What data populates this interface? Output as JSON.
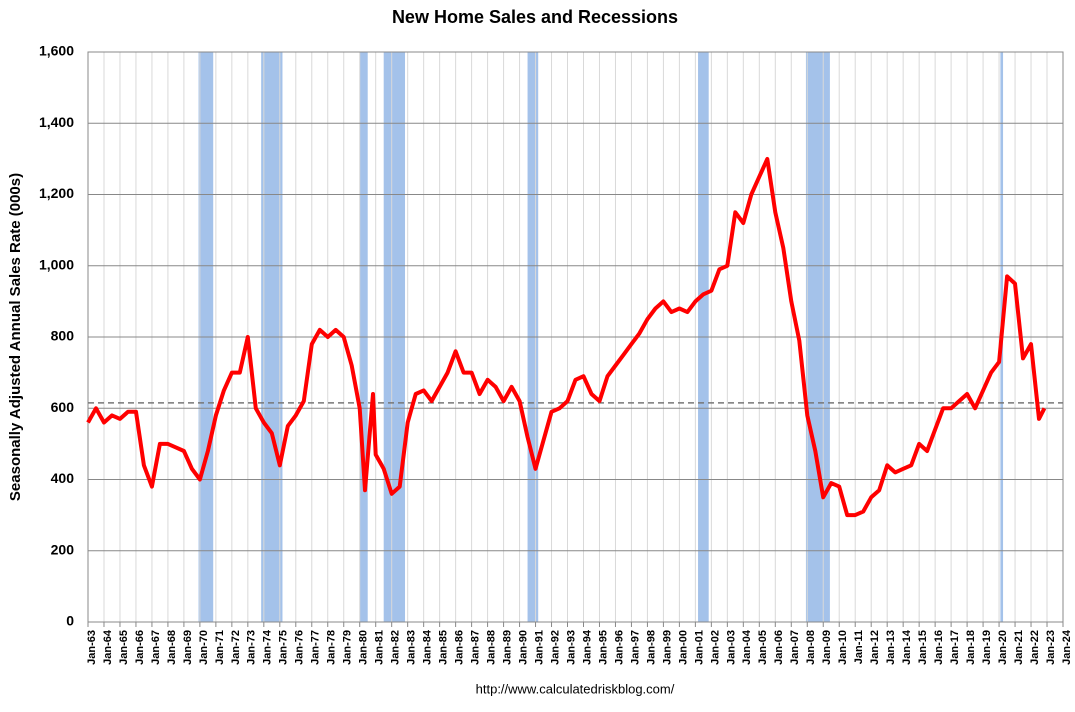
{
  "chart_data": {
    "type": "line",
    "title": "New Home Sales and Recessions",
    "y_label": "Seasonally Adjusted Annual Sales Rate (000s)",
    "source": "http://www.calculatedriskblog.com/",
    "ylim": [
      0,
      1600
    ],
    "yticks": [
      0,
      200,
      400,
      600,
      800,
      {
        "value": 1000,
        "label": "1,000"
      },
      {
        "value": 1200,
        "label": "1,200"
      },
      {
        "value": 1400,
        "label": "1,400"
      },
      {
        "value": 1600,
        "label": "1,600"
      }
    ],
    "xlim": [
      "Jan-63",
      "Jan-24"
    ],
    "xticks": [
      "Jan-63",
      "Jan-64",
      "Jan-65",
      "Jan-66",
      "Jan-67",
      "Jan-68",
      "Jan-69",
      "Jan-70",
      "Jan-71",
      "Jan-72",
      "Jan-73",
      "Jan-74",
      "Jan-75",
      "Jan-76",
      "Jan-77",
      "Jan-78",
      "Jan-79",
      "Jan-80",
      "Jan-81",
      "Jan-82",
      "Jan-83",
      "Jan-84",
      "Jan-85",
      "Jan-86",
      "Jan-87",
      "Jan-88",
      "Jan-89",
      "Jan-90",
      "Jan-91",
      "Jan-92",
      "Jan-93",
      "Jan-94",
      "Jan-95",
      "Jan-96",
      "Jan-97",
      "Jan-98",
      "Jan-99",
      "Jan-00",
      "Jan-01",
      "Jan-02",
      "Jan-03",
      "Jan-04",
      "Jan-05",
      "Jan-06",
      "Jan-07",
      "Jan-08",
      "Jan-09",
      "Jan-10",
      "Jan-11",
      "Jan-12",
      "Jan-13",
      "Jan-14",
      "Jan-15",
      "Jan-16",
      "Jan-17",
      "Jan-18",
      "Jan-19",
      "Jan-20",
      "Jan-21",
      "Jan-22",
      "Jan-23",
      "Jan-24"
    ],
    "grid": true,
    "reference_line": 615,
    "recession_color": "#a4c2ea",
    "recessions": [
      [
        "Dec-69",
        "Nov-70"
      ],
      [
        "Nov-73",
        "Mar-75"
      ],
      [
        "Jan-80",
        "Jul-80"
      ],
      [
        "Jul-81",
        "Nov-82"
      ],
      [
        "Jul-90",
        "Mar-91"
      ],
      [
        "Mar-01",
        "Nov-01"
      ],
      [
        "Dec-07",
        "Jun-09"
      ],
      [
        "Feb-20",
        "Apr-20"
      ]
    ],
    "series": [
      {
        "name": "New Home Sales",
        "color": "#ff0000",
        "x": [
          "Jan-63",
          "Jul-63",
          "Jan-64",
          "Jul-64",
          "Jan-65",
          "Jul-65",
          "Jan-66",
          "Jul-66",
          "Jan-67",
          "Jul-67",
          "Jan-68",
          "Jul-68",
          "Jan-69",
          "Jul-69",
          "Jan-70",
          "Jul-70",
          "Jan-71",
          "Jul-71",
          "Jan-72",
          "Jul-72",
          "Jan-73",
          "Jul-73",
          "Jan-74",
          "Jul-74",
          "Jan-75",
          "Jul-75",
          "Jan-76",
          "Jul-76",
          "Jan-77",
          "Jul-77",
          "Jan-78",
          "Jul-78",
          "Jan-79",
          "Jul-79",
          "Jan-80",
          "May-80",
          "Nov-80",
          "Jan-81",
          "Jul-81",
          "Jan-82",
          "Jul-82",
          "Jan-83",
          "Jul-83",
          "Jan-84",
          "Jul-84",
          "Jan-85",
          "Jul-85",
          "Jan-86",
          "Jul-86",
          "Jan-87",
          "Jul-87",
          "Jan-88",
          "Jul-88",
          "Jan-89",
          "Jul-89",
          "Jan-90",
          "Jul-90",
          "Jan-91",
          "Jul-91",
          "Jan-92",
          "Jul-92",
          "Jan-93",
          "Jul-93",
          "Jan-94",
          "Jul-94",
          "Jan-95",
          "Jul-95",
          "Jan-96",
          "Jul-96",
          "Jan-97",
          "Jul-97",
          "Jan-98",
          "Jul-98",
          "Jan-99",
          "Jul-99",
          "Jan-00",
          "Jul-00",
          "Jan-01",
          "Jul-01",
          "Jan-02",
          "Jul-02",
          "Jan-03",
          "Jul-03",
          "Jan-04",
          "Jul-04",
          "Jan-05",
          "Jul-05",
          "Jan-06",
          "Jul-06",
          "Jan-07",
          "Jul-07",
          "Jan-08",
          "Jul-08",
          "Jan-09",
          "Jul-09",
          "Jan-10",
          "Jul-10",
          "Jan-11",
          "Jul-11",
          "Jan-12",
          "Jul-12",
          "Jan-13",
          "Jul-13",
          "Jan-14",
          "Jul-14",
          "Jan-15",
          "Jul-15",
          "Jan-16",
          "Jul-16",
          "Jan-17",
          "Jul-17",
          "Jan-18",
          "Jul-18",
          "Jan-19",
          "Jul-19",
          "Jan-20",
          "Jul-20",
          "Jan-21",
          "Jul-21",
          "Jan-22",
          "Jul-22",
          "Nov-22"
        ],
        "values": [
          560,
          600,
          560,
          580,
          570,
          590,
          590,
          440,
          380,
          500,
          500,
          490,
          480,
          430,
          400,
          480,
          580,
          650,
          700,
          700,
          800,
          600,
          560,
          530,
          440,
          550,
          580,
          620,
          780,
          820,
          800,
          820,
          800,
          720,
          600,
          370,
          640,
          470,
          430,
          360,
          380,
          560,
          640,
          650,
          620,
          660,
          700,
          760,
          700,
          700,
          640,
          680,
          660,
          620,
          660,
          620,
          520,
          430,
          510,
          590,
          600,
          620,
          680,
          690,
          640,
          620,
          690,
          720,
          750,
          780,
          810,
          850,
          880,
          900,
          870,
          880,
          870,
          900,
          920,
          930,
          990,
          1000,
          1150,
          1120,
          1200,
          1250,
          1300,
          1150,
          1050,
          900,
          790,
          580,
          480,
          350,
          390,
          380,
          300,
          300,
          310,
          350,
          370,
          440,
          420,
          430,
          440,
          500,
          480,
          540,
          600,
          600,
          620,
          640,
          600,
          650,
          700,
          730,
          970,
          950,
          740,
          780,
          570,
          600
        ]
      }
    ]
  }
}
